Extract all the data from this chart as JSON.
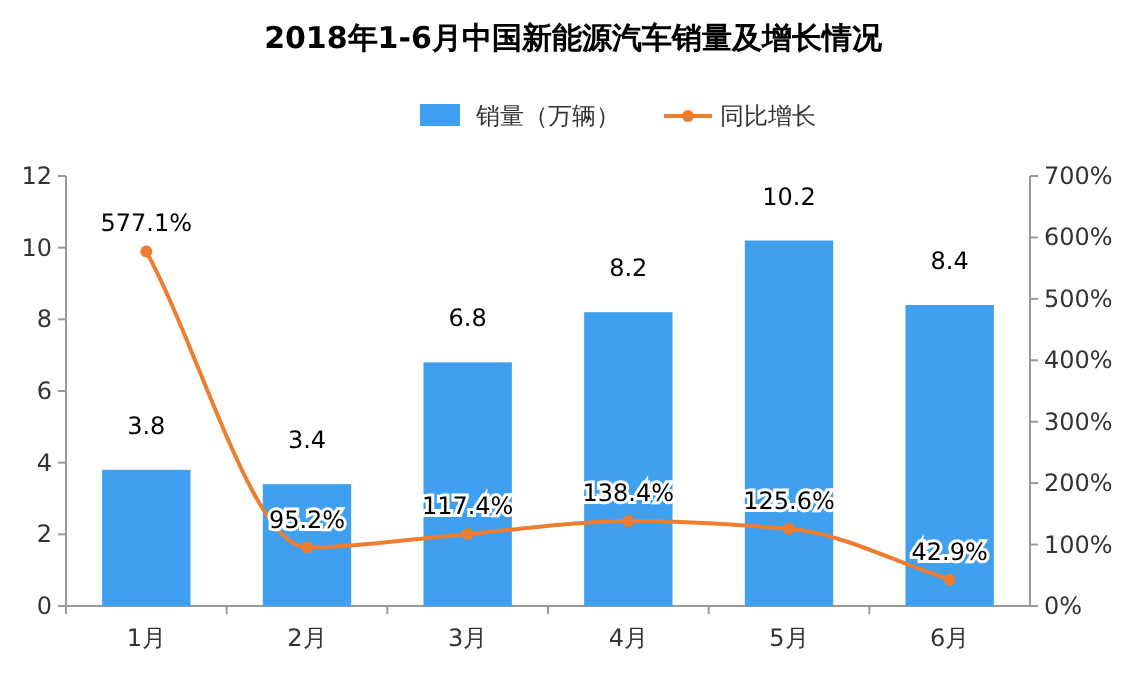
{
  "chart_data": {
    "type": "bar",
    "title": "2018年1-6月中国新能源汽车销量及增长情况",
    "categories": [
      "1月",
      "2月",
      "3月",
      "4月",
      "5月",
      "6月"
    ],
    "series": [
      {
        "name": "销量（万辆）",
        "color": "#3fa0ef",
        "values": [
          3.8,
          3.4,
          6.8,
          8.2,
          10.2,
          8.4
        ],
        "value_labels": [
          "3.8",
          "3.4",
          "6.8",
          "8.2",
          "10.2",
          "8.4"
        ]
      },
      {
        "name": "同比增长",
        "type": "line",
        "axis": "y2",
        "color": "#ed7d31",
        "marker": "circle",
        "values": [
          577.1,
          95.2,
          117.4,
          138.4,
          125.6,
          42.9
        ],
        "value_labels": [
          "577.1%",
          "95.2%",
          "117.4%",
          "138.4%",
          "125.6%",
          "42.9%"
        ]
      }
    ],
    "ylim": [
      0,
      12
    ],
    "yticks": [
      0,
      2,
      4,
      6,
      8,
      10,
      12
    ],
    "y2lim": [
      0,
      700
    ],
    "y2ticks": [
      {
        "value": 0,
        "label": "0%"
      },
      {
        "value": 100,
        "label": "100%"
      },
      {
        "value": 200,
        "label": "200%"
      },
      {
        "value": 300,
        "label": "300%"
      },
      {
        "value": 400,
        "label": "400%"
      },
      {
        "value": 500,
        "label": "500%"
      },
      {
        "value": 600,
        "label": "600%"
      },
      {
        "value": 700,
        "label": "700%"
      }
    ],
    "legend": "top",
    "grid": false
  }
}
